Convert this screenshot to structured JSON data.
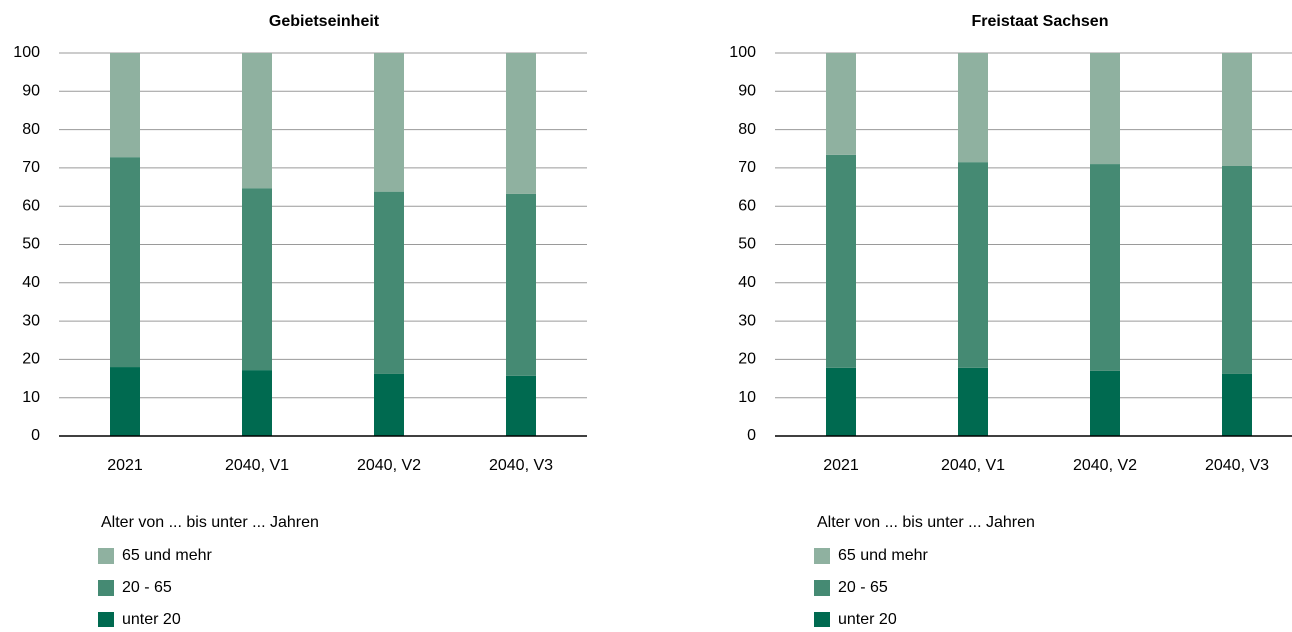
{
  "chart_data": [
    {
      "type": "bar",
      "stacked": true,
      "title": "Gebietseinheit",
      "categories": [
        "2021",
        "2040, V1",
        "2040, V2",
        "2040, V3"
      ],
      "legend_title": "Alter von ... bis unter ... Jahren",
      "series": [
        {
          "name": "unter 20",
          "color": "#006a50",
          "values": [
            18.0,
            17.2,
            16.2,
            15.7
          ]
        },
        {
          "name": "20 - 65",
          "color": "#458a73",
          "values": [
            54.8,
            47.5,
            47.6,
            47.5
          ]
        },
        {
          "name": "65 und mehr",
          "color": "#8fb1a0",
          "values": [
            27.2,
            35.3,
            36.2,
            36.8
          ]
        }
      ],
      "ylim": [
        0,
        100
      ],
      "yticks": [
        0,
        10,
        20,
        30,
        40,
        50,
        60,
        70,
        80,
        90,
        100
      ],
      "grid": true
    },
    {
      "type": "bar",
      "stacked": true,
      "title": "Freistaat Sachsen",
      "categories": [
        "2021",
        "2040, V1",
        "2040, V2",
        "2040, V3"
      ],
      "legend_title": "Alter von ... bis unter ... Jahren",
      "series": [
        {
          "name": "unter 20",
          "color": "#006a50",
          "values": [
            17.8,
            17.8,
            17.0,
            16.2
          ]
        },
        {
          "name": "20 - 65",
          "color": "#458a73",
          "values": [
            55.6,
            53.7,
            54.0,
            54.3
          ]
        },
        {
          "name": "65 und mehr",
          "color": "#8fb1a0",
          "values": [
            26.6,
            28.5,
            29.0,
            29.5
          ]
        }
      ],
      "ylim": [
        0,
        100
      ],
      "yticks": [
        0,
        10,
        20,
        30,
        40,
        50,
        60,
        70,
        80,
        90,
        100
      ],
      "grid": true
    }
  ]
}
